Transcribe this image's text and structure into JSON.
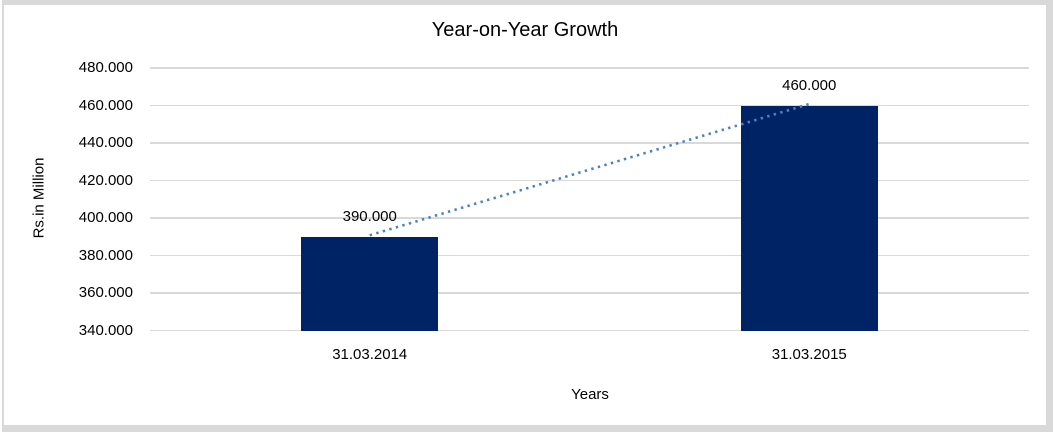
{
  "page": {
    "background": "#FFFFFF",
    "frame_color": "#D9D9D9"
  },
  "chart_data": {
    "type": "bar",
    "title": "Year-on-Year Growth",
    "xlabel": "Years",
    "ylabel": "Rs.in Million",
    "categories": [
      "31.03.2014",
      "31.03.2015"
    ],
    "values": [
      390000,
      460000
    ],
    "value_labels": [
      "390.000",
      "460.000"
    ],
    "y_tick_values": [
      480000,
      460000,
      440000,
      420000,
      400000,
      380000,
      360000,
      340000
    ],
    "y_tick_labels": [
      "480.000",
      "460.000",
      "440.000",
      "420.000",
      "400.000",
      "380.000",
      "360.000",
      "340.000"
    ],
    "ylim": [
      340000,
      480000
    ],
    "grid": true,
    "legend": "none",
    "bar_color": "#002366",
    "gridline_color": "#D9D9D9",
    "text_color": "#000000",
    "trendline": {
      "type": "linear",
      "style": "dotted",
      "color": "#4F81BD",
      "from_value": 390000,
      "to_value": 460000
    }
  }
}
